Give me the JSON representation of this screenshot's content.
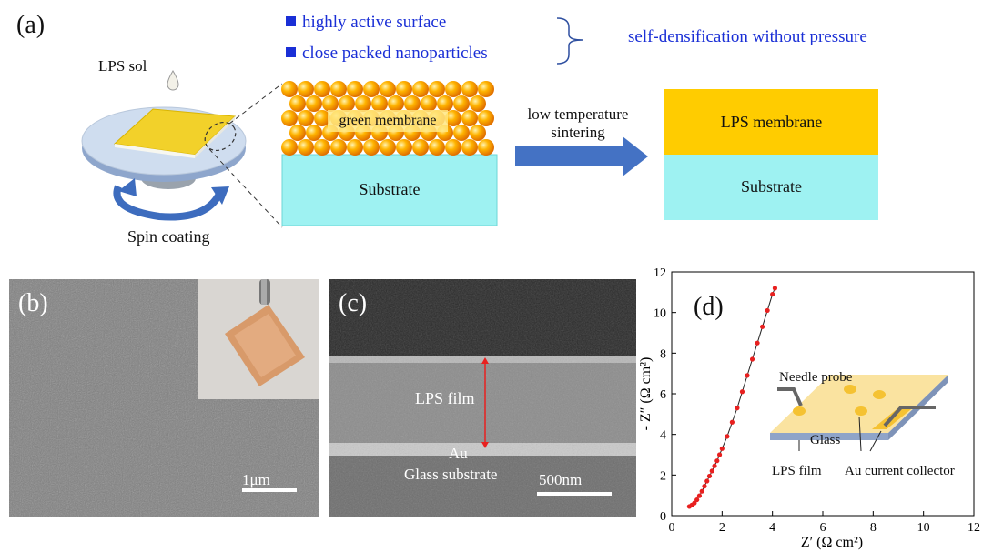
{
  "panel_a": {
    "label": "(a)",
    "bullets": [
      "highly active surface",
      "close packed nanoparticles"
    ],
    "outcome": "self-densification without pressure",
    "sol_label": "LPS sol",
    "spin_label": "Spin coating",
    "green_membrane": "green membrane",
    "substrate_left": "Substrate",
    "arrow_label_1": "low temperature",
    "arrow_label_2": "sintering",
    "membrane_right": "LPS membrane",
    "substrate_right": "Substrate"
  },
  "panel_b": {
    "label": "(b)",
    "scale_bar": "1μm"
  },
  "panel_c": {
    "label": "(c)",
    "film": "LPS film",
    "au": "Au",
    "glass": "Glass substrate",
    "scale_bar": "500nm"
  },
  "panel_d": {
    "label": "(d)",
    "inset": {
      "needle": "Needle probe",
      "glass": "Glass",
      "film": "LPS film",
      "collector": "Au current collector"
    }
  },
  "colors": {
    "blue_text": "#1a2fd6",
    "substrate": "#9ef2f2",
    "membrane": "#ffcc00",
    "arrow": "#4472c4",
    "data_points": "#e8201f"
  },
  "chart_data": {
    "type": "scatter",
    "xlabel": "Z′ (Ω cm²)",
    "ylabel": "- Z″ (Ω cm²)",
    "xlim": [
      0,
      12
    ],
    "ylim": [
      0,
      12
    ],
    "x_ticks": [
      "0",
      "2",
      "4",
      "6",
      "8",
      "10",
      "12"
    ],
    "y_ticks": [
      "0",
      "2",
      "4",
      "6",
      "8",
      "10",
      "12"
    ],
    "series": [
      {
        "x": [
          0.7,
          0.8,
          0.9,
          1.0,
          1.1,
          1.2,
          1.3,
          1.4,
          1.5,
          1.6,
          1.7,
          1.8,
          1.9,
          2.0,
          2.2,
          2.4,
          2.6,
          2.8,
          3.0,
          3.2,
          3.4,
          3.6,
          3.8,
          4.0,
          4.1
        ],
        "y": [
          0.45,
          0.52,
          0.62,
          0.78,
          0.98,
          1.2,
          1.45,
          1.7,
          1.95,
          2.2,
          2.45,
          2.7,
          3.0,
          3.3,
          3.9,
          4.6,
          5.3,
          6.1,
          6.9,
          7.7,
          8.5,
          9.3,
          10.1,
          10.9,
          11.2
        ]
      }
    ],
    "fit_line": true
  }
}
